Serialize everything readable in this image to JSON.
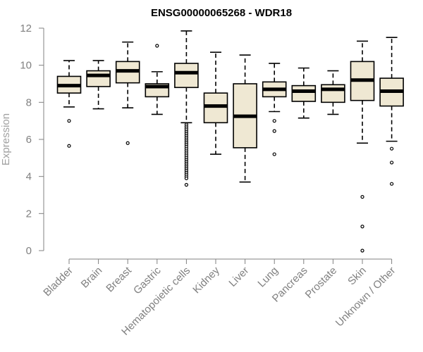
{
  "chart_data": {
    "type": "box",
    "title": "ENSG00000065268 - WDR18",
    "xlabel": "",
    "ylabel": "Expression",
    "ylim": [
      0,
      12
    ],
    "yticks": [
      0,
      2,
      4,
      6,
      8,
      10,
      12
    ],
    "box_fill": "#efe8d3",
    "categories": [
      "Bladder",
      "Brain",
      "Breast",
      "Gastric",
      "Hematopoietic cells",
      "Kidney",
      "Liver",
      "Lung",
      "Pancreas",
      "Prostate",
      "Skin",
      "Unknown / Other"
    ],
    "boxes": [
      {
        "name": "Bladder",
        "whisker_low": 7.75,
        "q1": 8.5,
        "median": 8.9,
        "q3": 9.4,
        "whisker_high": 10.25,
        "outliers": [
          7.0,
          5.65
        ]
      },
      {
        "name": "Brain",
        "whisker_low": 7.65,
        "q1": 8.85,
        "median": 9.45,
        "q3": 9.7,
        "whisker_high": 10.25,
        "outliers": []
      },
      {
        "name": "Breast",
        "whisker_low": 7.7,
        "q1": 9.05,
        "median": 9.7,
        "q3": 10.2,
        "whisker_high": 11.25,
        "outliers": [
          5.8
        ]
      },
      {
        "name": "Gastric",
        "whisker_low": 7.35,
        "q1": 8.3,
        "median": 8.85,
        "q3": 9.0,
        "whisker_high": 9.65,
        "outliers": [
          11.05
        ]
      },
      {
        "name": "Hematopoietic cells",
        "whisker_low": 6.9,
        "q1": 8.8,
        "median": 9.6,
        "q3": 10.1,
        "whisker_high": 11.85,
        "outliers": [
          6.8,
          6.7,
          6.6,
          6.5,
          6.4,
          6.3,
          6.2,
          6.1,
          6.0,
          5.9,
          5.8,
          5.7,
          5.6,
          5.5,
          5.4,
          5.3,
          5.2,
          5.1,
          5.0,
          4.9,
          4.8,
          4.7,
          4.6,
          4.5,
          4.4,
          4.3,
          4.2,
          4.1,
          4.0,
          3.9,
          3.55
        ]
      },
      {
        "name": "Kidney",
        "whisker_low": 5.2,
        "q1": 6.9,
        "median": 7.8,
        "q3": 8.5,
        "whisker_high": 10.7,
        "outliers": []
      },
      {
        "name": "Liver",
        "whisker_low": 3.7,
        "q1": 5.55,
        "median": 7.25,
        "q3": 9.0,
        "whisker_high": 10.55,
        "outliers": []
      },
      {
        "name": "Lung",
        "whisker_low": 7.5,
        "q1": 8.3,
        "median": 8.7,
        "q3": 9.1,
        "whisker_high": 10.1,
        "outliers": [
          7.0,
          6.45,
          5.2
        ]
      },
      {
        "name": "Pancreas",
        "whisker_low": 7.15,
        "q1": 8.05,
        "median": 8.6,
        "q3": 8.9,
        "whisker_high": 9.85,
        "outliers": []
      },
      {
        "name": "Prostate",
        "whisker_low": 7.35,
        "q1": 8.0,
        "median": 8.7,
        "q3": 8.95,
        "whisker_high": 9.7,
        "outliers": []
      },
      {
        "name": "Skin",
        "whisker_low": 5.8,
        "q1": 8.1,
        "median": 9.2,
        "q3": 10.2,
        "whisker_high": 11.3,
        "outliers": [
          2.9,
          1.3,
          0.0
        ]
      },
      {
        "name": "Unknown / Other",
        "whisker_low": 5.9,
        "q1": 7.8,
        "median": 8.6,
        "q3": 9.3,
        "whisker_high": 11.5,
        "outliers": [
          5.5,
          4.75,
          3.6
        ]
      }
    ]
  }
}
